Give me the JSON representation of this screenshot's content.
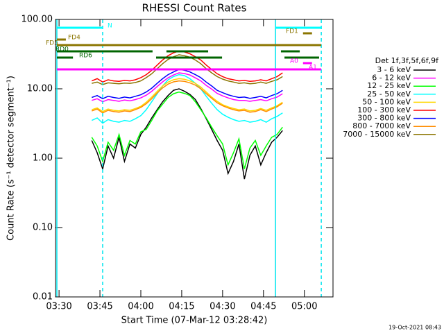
{
  "chart_data": {
    "type": "line",
    "title": "RHESSI Count Rates",
    "x_label": "Start Time (07-Mar-12 03:28:42)",
    "y_label": "Count Rate (s⁻¹ detector segment⁻¹)",
    "legend_title": "Det 1f,3f,5f,6f,9f",
    "footer": "19-Oct-2021 08:43",
    "log_y": true,
    "xlim": [
      208.7,
      310.5
    ],
    "ylim": [
      0.01,
      100
    ],
    "xticks": [
      {
        "value": 210,
        "label": "03:30"
      },
      {
        "value": 225,
        "label": "03:45"
      },
      {
        "value": 240,
        "label": "04:00"
      },
      {
        "value": 255,
        "label": "04:15"
      },
      {
        "value": 270,
        "label": "04:30"
      },
      {
        "value": 285,
        "label": "04:45"
      },
      {
        "value": 300,
        "label": "05:00"
      }
    ],
    "yticks": [
      {
        "value": 0.01,
        "label": "0.01"
      },
      {
        "value": 0.1,
        "label": "0.10"
      },
      {
        "value": 1,
        "label": "1.00"
      },
      {
        "value": 10,
        "label": "10.00"
      },
      {
        "value": 100,
        "label": "100.00"
      }
    ],
    "x": [
      222,
      224,
      226,
      228,
      230,
      232,
      234,
      236,
      238,
      240,
      242,
      244,
      246,
      248,
      250,
      252,
      254,
      256,
      258,
      260,
      262,
      264,
      266,
      268,
      270,
      272,
      274,
      276,
      278,
      280,
      282,
      284,
      286,
      288,
      290,
      292
    ],
    "series": [
      {
        "name": "3 - 6 keV",
        "color": "#000000",
        "values": [
          1.8,
          1.2,
          0.7,
          1.5,
          1,
          2,
          0.9,
          1.6,
          1.4,
          2.2,
          2.8,
          3.8,
          5,
          6.5,
          8,
          9.5,
          10,
          9.2,
          8.3,
          7,
          5.2,
          3.7,
          2.6,
          1.8,
          1.3,
          0.6,
          0.9,
          1.6,
          0.5,
          1.1,
          1.5,
          0.8,
          1.2,
          1.7,
          2,
          2.5
        ]
      },
      {
        "name": "6 - 12 keV",
        "color": "#ff00ff",
        "values": [
          6.8,
          7.2,
          6.5,
          7,
          6.8,
          6.6,
          6.9,
          6.7,
          7,
          7.4,
          8.1,
          9.2,
          10.8,
          12.6,
          14.4,
          15.8,
          17,
          16.6,
          15.8,
          14.4,
          13,
          11.2,
          9.9,
          8.6,
          7.9,
          7.4,
          7,
          6.8,
          6.8,
          6.6,
          6.8,
          7,
          6.7,
          7.2,
          7.6,
          8.5
        ]
      },
      {
        "name": "12 - 25 keV",
        "color": "#00ff00",
        "values": [
          2,
          1.5,
          0.9,
          1.7,
          1.3,
          2.2,
          1.1,
          1.8,
          1.6,
          2.4,
          2.6,
          3.5,
          4.8,
          6,
          7.5,
          8.5,
          9,
          8.6,
          8,
          6.5,
          5,
          3.8,
          2.8,
          2.1,
          1.6,
          0.8,
          1.2,
          1.9,
          0.7,
          1.4,
          1.8,
          1.1,
          1.5,
          2,
          2.2,
          2.8
        ]
      },
      {
        "name": "25 - 50 keV",
        "color": "#00ffff",
        "values": [
          3.5,
          3.8,
          3.2,
          3.6,
          3.4,
          3.3,
          3.5,
          3.4,
          3.7,
          4.1,
          5,
          6.5,
          8.5,
          11,
          13.5,
          15,
          16,
          15.5,
          14,
          12,
          10,
          7.8,
          6.2,
          5,
          4.3,
          3.9,
          3.6,
          3.4,
          3.5,
          3.3,
          3.4,
          3.6,
          3.3,
          3.7,
          4,
          4.5
        ]
      },
      {
        "name": "50 - 100 keV",
        "color": "#ffd700",
        "values": [
          5,
          5.3,
          4.7,
          5.1,
          4.9,
          4.8,
          5,
          4.9,
          5.2,
          5.6,
          6.4,
          7.6,
          9.2,
          11,
          12.5,
          13.5,
          14,
          13.7,
          13,
          12,
          10.6,
          9,
          7.6,
          6.6,
          5.9,
          5.5,
          5.2,
          5,
          5.1,
          4.8,
          4.9,
          5.2,
          4.9,
          5.3,
          5.7,
          6.4
        ]
      },
      {
        "name": "100 - 300 keV",
        "color": "#ff0000",
        "values": [
          13,
          14,
          12.5,
          13.5,
          13,
          12.8,
          13.2,
          13,
          13.5,
          14.5,
          16,
          18.5,
          22,
          26,
          30,
          33,
          35,
          34,
          32,
          29,
          26,
          22,
          19,
          16.5,
          15,
          14,
          13.5,
          13,
          13.2,
          12.8,
          13,
          13.5,
          13,
          14,
          15,
          17
        ]
      },
      {
        "name": "300 - 800 keV",
        "color": "#0000ff",
        "values": [
          7.5,
          8,
          7.2,
          7.8,
          7.5,
          7.3,
          7.6,
          7.4,
          7.8,
          8.2,
          9,
          10.2,
          12,
          14,
          16,
          17.5,
          19,
          18.5,
          17.5,
          16,
          14.5,
          12.5,
          11,
          9.5,
          8.8,
          8.2,
          7.8,
          7.5,
          7.6,
          7.3,
          7.5,
          7.8,
          7.4,
          8,
          8.5,
          9.5
        ]
      },
      {
        "name": "800 - 7000 keV",
        "color": "#ff8c00",
        "values": [
          4.8,
          5.1,
          4.5,
          4.9,
          4.7,
          4.6,
          4.8,
          4.7,
          5,
          5.4,
          6.1,
          7.2,
          8.7,
          10.3,
          11.7,
          12.6,
          13,
          12.8,
          12.2,
          11.3,
          10,
          8.5,
          7.3,
          6.3,
          5.7,
          5.3,
          5,
          4.8,
          4.9,
          4.6,
          4.7,
          5,
          4.7,
          5.1,
          5.5,
          6.2
        ]
      },
      {
        "name": "7000 - 15000 keV",
        "color": "#8b7500",
        "values": [
          12,
          12.5,
          11.5,
          12.2,
          12,
          11.8,
          12.1,
          12,
          12.3,
          13,
          14.5,
          16.5,
          19.5,
          23,
          26.5,
          29,
          31,
          30,
          28.5,
          26,
          23,
          19.5,
          17,
          15,
          13.8,
          13,
          12.5,
          12,
          12.2,
          11.8,
          12,
          12.5,
          12,
          12.8,
          13.5,
          15
        ]
      }
    ],
    "flags": [
      {
        "label": "N",
        "color": "#00ffff",
        "spans": [
          [
            209.2,
            226
          ],
          [
            289.4,
            306.2
          ]
        ]
      },
      {
        "label": "FD1",
        "color": "#8b7500",
        "spans": [
          [
            299.5,
            302.8
          ]
        ]
      },
      {
        "label": "FD4",
        "color": "#8b7500",
        "spans": [
          [
            209.2,
            212.5
          ]
        ]
      },
      {
        "label": "FD5",
        "color": "#8b7500",
        "spans": [
          [
            209.2,
            306.2
          ]
        ]
      },
      {
        "label": "RD0",
        "color": "#006400",
        "spans": [
          [
            209.2,
            244.3
          ],
          [
            249.4,
            264.7
          ],
          [
            291.4,
            298.3
          ]
        ]
      },
      {
        "label": "RD6",
        "color": "#006400",
        "spans": [
          [
            209.2,
            215.1
          ],
          [
            245.6,
            269.8
          ],
          [
            292.7,
            305.4
          ]
        ]
      },
      {
        "label": "A0",
        "color": "#ff00ff",
        "spans": [
          [
            299.5,
            302.8
          ]
        ]
      },
      {
        "label": "A1",
        "color": "#ff00ff",
        "spans": [
          [
            209.2,
            306.2
          ]
        ]
      }
    ],
    "markers": [
      {
        "x": 209.2,
        "color": "#00e5ee",
        "dashed": false
      },
      {
        "x": 226,
        "color": "#00e5ee",
        "dashed": true
      },
      {
        "x": 289.4,
        "color": "#00e5ee",
        "dashed": false
      },
      {
        "x": 306.2,
        "color": "#00e5ee",
        "dashed": true
      }
    ]
  }
}
